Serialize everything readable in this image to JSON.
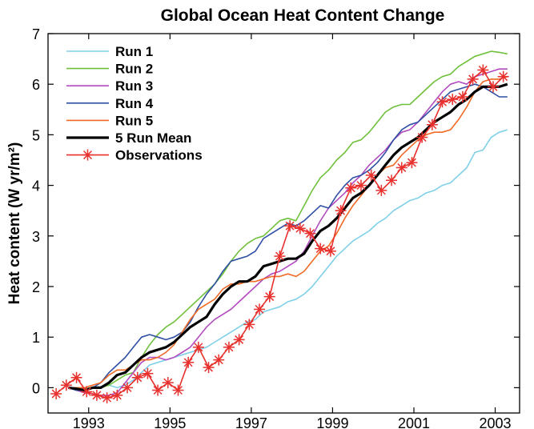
{
  "chart_data": {
    "type": "line",
    "title": "Global Ocean Heat Content Change",
    "xlabel": "",
    "ylabel": "Heat content (W yr/m²)",
    "xlim": [
      1992.0,
      2003.6
    ],
    "ylim": [
      -0.5,
      7
    ],
    "xticks": [
      1993,
      1995,
      1997,
      1999,
      2001,
      2003
    ],
    "yticks": [
      0,
      1,
      2,
      3,
      4,
      5,
      6,
      7
    ],
    "grid": false,
    "legend_position": "top-left",
    "series": [
      {
        "name": "Run 1",
        "color": "#7fd0e8",
        "width": 1.6,
        "marker": "none",
        "x": [
          1992.5,
          1992.7,
          1992.9,
          1993.1,
          1993.3,
          1993.5,
          1993.7,
          1993.9,
          1994.1,
          1994.3,
          1994.5,
          1994.7,
          1994.9,
          1995.1,
          1995.3,
          1995.5,
          1995.7,
          1995.9,
          1996.1,
          1996.3,
          1996.5,
          1996.7,
          1996.9,
          1997.1,
          1997.3,
          1997.5,
          1997.7,
          1997.9,
          1998.1,
          1998.3,
          1998.5,
          1998.7,
          1998.9,
          1999.1,
          1999.3,
          1999.5,
          1999.7,
          1999.9,
          2000.1,
          2000.3,
          2000.5,
          2000.7,
          2000.9,
          2001.1,
          2001.3,
          2001.5,
          2001.7,
          2001.9,
          2002.1,
          2002.3,
          2002.5,
          2002.7,
          2002.9,
          2003.1,
          2003.3
        ],
        "y": [
          0.0,
          -0.05,
          -0.02,
          0.0,
          0.02,
          0.05,
          0.0,
          0.05,
          0.15,
          0.3,
          0.45,
          0.5,
          0.55,
          0.6,
          0.65,
          0.7,
          0.75,
          0.8,
          0.9,
          1.0,
          1.1,
          1.2,
          1.3,
          1.35,
          1.5,
          1.55,
          1.6,
          1.7,
          1.75,
          1.85,
          2.0,
          2.2,
          2.4,
          2.6,
          2.75,
          2.9,
          3.0,
          3.1,
          3.25,
          3.35,
          3.5,
          3.6,
          3.7,
          3.75,
          3.85,
          3.9,
          4.0,
          4.05,
          4.2,
          4.35,
          4.65,
          4.7,
          4.95,
          5.05,
          5.1
        ]
      },
      {
        "name": "Run 2",
        "color": "#6fc03c",
        "width": 1.6,
        "marker": "none",
        "x": [
          1992.5,
          1992.7,
          1992.9,
          1993.1,
          1993.3,
          1993.5,
          1993.7,
          1993.9,
          1994.1,
          1994.3,
          1994.5,
          1994.7,
          1994.9,
          1995.1,
          1995.3,
          1995.5,
          1995.7,
          1995.9,
          1996.1,
          1996.3,
          1996.5,
          1996.7,
          1996.9,
          1997.1,
          1997.3,
          1997.5,
          1997.7,
          1997.9,
          1998.1,
          1998.3,
          1998.5,
          1998.7,
          1998.9,
          1999.1,
          1999.3,
          1999.5,
          1999.7,
          1999.9,
          2000.1,
          2000.3,
          2000.5,
          2000.7,
          2000.9,
          2001.1,
          2001.3,
          2001.5,
          2001.7,
          2001.9,
          2002.1,
          2002.3,
          2002.5,
          2002.7,
          2002.9,
          2003.1,
          2003.3
        ],
        "y": [
          0.0,
          -0.05,
          -0.02,
          0.0,
          0.0,
          0.05,
          0.15,
          0.25,
          0.3,
          0.6,
          0.85,
          1.05,
          1.2,
          1.3,
          1.45,
          1.6,
          1.75,
          1.9,
          2.05,
          2.25,
          2.5,
          2.7,
          2.85,
          2.95,
          3.0,
          3.15,
          3.3,
          3.35,
          3.3,
          3.6,
          3.9,
          4.15,
          4.3,
          4.5,
          4.65,
          4.85,
          4.9,
          5.05,
          5.25,
          5.45,
          5.55,
          5.6,
          5.6,
          5.75,
          5.9,
          6.05,
          6.15,
          6.2,
          6.35,
          6.45,
          6.55,
          6.6,
          6.65,
          6.63,
          6.6
        ]
      },
      {
        "name": "Run 3",
        "color": "#b24bbf",
        "width": 1.6,
        "marker": "none",
        "x": [
          1992.5,
          1992.7,
          1992.9,
          1993.1,
          1993.3,
          1993.5,
          1993.7,
          1993.9,
          1994.1,
          1994.3,
          1994.5,
          1994.7,
          1994.9,
          1995.1,
          1995.3,
          1995.5,
          1995.7,
          1995.9,
          1996.1,
          1996.3,
          1996.5,
          1996.7,
          1996.9,
          1997.1,
          1997.3,
          1997.5,
          1997.7,
          1997.9,
          1998.1,
          1998.3,
          1998.5,
          1998.7,
          1998.9,
          1999.1,
          1999.3,
          1999.5,
          1999.7,
          1999.9,
          2000.1,
          2000.3,
          2000.5,
          2000.7,
          2000.9,
          2001.1,
          2001.3,
          2001.5,
          2001.7,
          2001.9,
          2002.1,
          2002.3,
          2002.5,
          2002.7,
          2002.9,
          2003.1,
          2003.3
        ],
        "y": [
          0.0,
          -0.05,
          -0.1,
          -0.12,
          -0.15,
          -0.15,
          -0.1,
          0.1,
          0.3,
          0.5,
          0.6,
          0.6,
          0.55,
          0.6,
          0.7,
          0.8,
          1.0,
          1.2,
          1.35,
          1.45,
          1.55,
          1.7,
          1.85,
          2.0,
          2.15,
          2.25,
          2.3,
          2.4,
          2.5,
          2.7,
          3.0,
          3.3,
          3.55,
          3.7,
          3.85,
          4.05,
          4.2,
          4.4,
          4.55,
          4.7,
          4.9,
          5.05,
          5.1,
          5.25,
          5.45,
          5.65,
          5.85,
          6.0,
          6.05,
          6.0,
          6.15,
          6.2,
          6.25,
          6.3,
          6.3
        ]
      },
      {
        "name": "Run 4",
        "color": "#2f4fa4",
        "width": 1.6,
        "marker": "none",
        "x": [
          1992.5,
          1992.7,
          1992.9,
          1993.1,
          1993.3,
          1993.5,
          1993.7,
          1993.9,
          1994.1,
          1994.3,
          1994.5,
          1994.7,
          1994.9,
          1995.1,
          1995.3,
          1995.5,
          1995.7,
          1995.9,
          1996.1,
          1996.3,
          1996.5,
          1996.7,
          1996.9,
          1997.1,
          1997.3,
          1997.5,
          1997.7,
          1997.9,
          1998.1,
          1998.3,
          1998.5,
          1998.7,
          1998.9,
          1999.1,
          1999.3,
          1999.5,
          1999.7,
          1999.9,
          2000.1,
          2000.3,
          2000.5,
          2000.7,
          2000.9,
          2001.1,
          2001.3,
          2001.5,
          2001.7,
          2001.9,
          2002.1,
          2002.3,
          2002.5,
          2002.7,
          2002.9,
          2003.1,
          2003.3
        ],
        "y": [
          0.0,
          -0.05,
          -0.05,
          0.0,
          0.1,
          0.3,
          0.45,
          0.6,
          0.8,
          1.0,
          1.05,
          1.0,
          0.95,
          1.0,
          1.1,
          1.3,
          1.6,
          1.85,
          2.05,
          2.3,
          2.5,
          2.55,
          2.6,
          2.7,
          2.95,
          3.05,
          3.15,
          3.25,
          3.2,
          3.3,
          3.45,
          3.6,
          3.55,
          3.8,
          4.0,
          4.15,
          4.2,
          4.3,
          4.45,
          4.65,
          4.9,
          5.1,
          5.2,
          5.25,
          5.4,
          5.55,
          5.7,
          5.85,
          5.9,
          5.95,
          6.0,
          5.95,
          5.85,
          5.75,
          5.75
        ]
      },
      {
        "name": "Run 5",
        "color": "#f06a25",
        "width": 1.6,
        "marker": "none",
        "x": [
          1992.5,
          1992.7,
          1992.9,
          1993.1,
          1993.3,
          1993.5,
          1993.7,
          1993.9,
          1994.1,
          1994.3,
          1994.5,
          1994.7,
          1994.9,
          1995.1,
          1995.3,
          1995.5,
          1995.7,
          1995.9,
          1996.1,
          1996.3,
          1996.5,
          1996.7,
          1996.9,
          1997.1,
          1997.3,
          1997.5,
          1997.7,
          1997.9,
          1998.1,
          1998.3,
          1998.5,
          1998.7,
          1998.9,
          1999.1,
          1999.3,
          1999.5,
          1999.7,
          1999.9,
          2000.1,
          2000.3,
          2000.5,
          2000.7,
          2000.9,
          2001.1,
          2001.3,
          2001.5,
          2001.7,
          2001.9,
          2002.1,
          2002.3,
          2002.5,
          2002.7,
          2002.9,
          2003.1,
          2003.3
        ],
        "y": [
          0.0,
          0.0,
          0.0,
          0.05,
          0.1,
          0.25,
          0.35,
          0.35,
          0.45,
          0.55,
          0.55,
          0.6,
          0.7,
          0.85,
          1.1,
          1.35,
          1.55,
          1.65,
          1.75,
          1.95,
          2.05,
          2.05,
          2.1,
          2.1,
          2.15,
          2.2,
          2.2,
          2.25,
          2.2,
          2.3,
          2.5,
          2.7,
          2.8,
          3.05,
          3.35,
          3.6,
          3.8,
          4.0,
          4.2,
          4.35,
          4.4,
          4.6,
          4.75,
          4.9,
          5.0,
          5.05,
          5.05,
          5.1,
          5.3,
          5.55,
          5.85,
          6.05,
          6.1,
          6.1,
          6.15
        ]
      },
      {
        "name": "5 Run Mean",
        "color": "#000000",
        "width": 3.2,
        "marker": "none",
        "x": [
          1992.5,
          1992.7,
          1992.9,
          1993.1,
          1993.3,
          1993.5,
          1993.7,
          1993.9,
          1994.1,
          1994.3,
          1994.5,
          1994.7,
          1994.9,
          1995.1,
          1995.3,
          1995.5,
          1995.7,
          1995.9,
          1996.1,
          1996.3,
          1996.5,
          1996.7,
          1996.9,
          1997.1,
          1997.3,
          1997.5,
          1997.7,
          1997.9,
          1998.1,
          1998.3,
          1998.5,
          1998.7,
          1998.9,
          1999.1,
          1999.3,
          1999.5,
          1999.7,
          1999.9,
          2000.1,
          2000.3,
          2000.5,
          2000.7,
          2000.9,
          2001.1,
          2001.3,
          2001.5,
          2001.7,
          2001.9,
          2002.1,
          2002.3,
          2002.5,
          2002.7,
          2002.9,
          2003.1,
          2003.3
        ],
        "y": [
          0.0,
          -0.02,
          -0.05,
          0.0,
          0.0,
          0.1,
          0.25,
          0.3,
          0.45,
          0.6,
          0.7,
          0.75,
          0.8,
          0.9,
          1.05,
          1.2,
          1.3,
          1.4,
          1.65,
          1.85,
          2.0,
          2.1,
          2.1,
          2.2,
          2.4,
          2.45,
          2.5,
          2.55,
          2.55,
          2.65,
          2.9,
          3.1,
          3.2,
          3.35,
          3.55,
          3.75,
          3.85,
          4.0,
          4.2,
          4.4,
          4.6,
          4.75,
          4.85,
          4.95,
          5.1,
          5.25,
          5.35,
          5.45,
          5.6,
          5.7,
          5.85,
          5.95,
          5.95,
          5.95,
          6.0
        ]
      },
      {
        "name": "Observations",
        "color": "#e8302d",
        "width": 1.6,
        "marker": "asterisk",
        "x": [
          1992.2,
          1992.45,
          1992.7,
          1992.95,
          1993.2,
          1993.45,
          1993.7,
          1993.95,
          1994.2,
          1994.45,
          1994.7,
          1994.95,
          1995.2,
          1995.45,
          1995.7,
          1995.95,
          1996.2,
          1996.45,
          1996.7,
          1996.95,
          1997.2,
          1997.45,
          1997.7,
          1997.95,
          1998.2,
          1998.45,
          1998.7,
          1998.95,
          1999.2,
          1999.45,
          1999.7,
          1999.95,
          2000.2,
          2000.45,
          2000.7,
          2000.95,
          2001.2,
          2001.45,
          2001.7,
          2001.95,
          2002.2,
          2002.45,
          2002.7,
          2002.95,
          2003.2
        ],
        "y": [
          -0.12,
          0.05,
          0.2,
          -0.08,
          -0.15,
          -0.2,
          -0.15,
          0.0,
          0.2,
          0.28,
          -0.05,
          0.1,
          -0.05,
          0.5,
          0.8,
          0.4,
          0.55,
          0.8,
          0.95,
          1.25,
          1.55,
          1.8,
          2.6,
          3.2,
          3.15,
          3.05,
          2.75,
          2.7,
          3.5,
          3.95,
          4.0,
          4.2,
          3.9,
          4.1,
          4.35,
          4.45,
          4.95,
          5.2,
          5.65,
          5.7,
          5.75,
          6.1,
          6.28,
          5.95,
          6.15
        ]
      }
    ]
  }
}
